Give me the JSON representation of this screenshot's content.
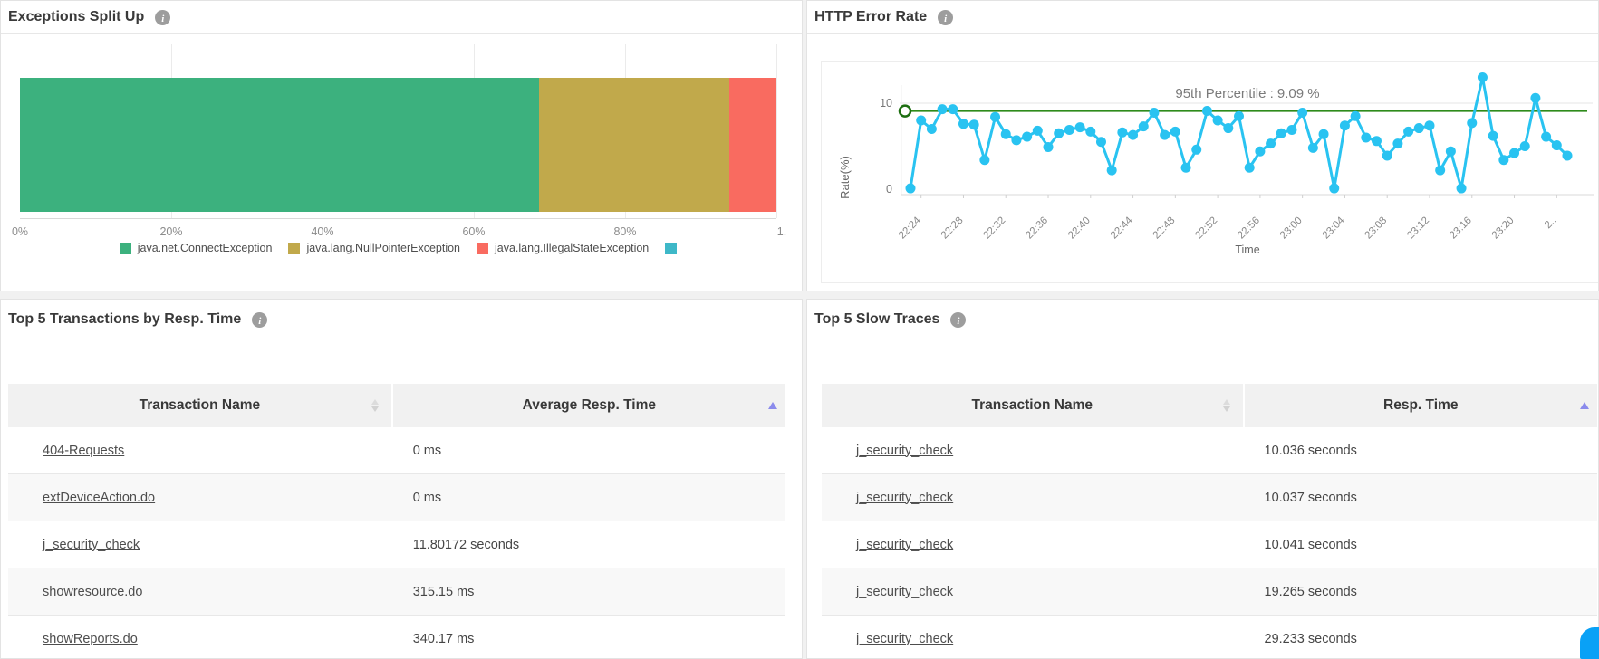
{
  "panels": {
    "exceptions_split_up": {
      "title": "Exceptions Split Up"
    },
    "http_error_rate": {
      "title": "HTTP Error Rate"
    },
    "top5_transactions": {
      "title": "Top 5 Transactions by Resp. Time"
    },
    "top5_slow_traces": {
      "title": "Top 5 Slow Traces"
    }
  },
  "chart_data": [
    {
      "id": "exceptions-split-up",
      "type": "bar",
      "subtype": "horizontal-stacked-percentage",
      "title": "Exceptions Split Up",
      "series": [
        {
          "name": "java.net.ConnectException",
          "value_pct": 68.6,
          "color": "#3cb17e"
        },
        {
          "name": "java.lang.NullPointerException",
          "value_pct": 25.2,
          "color": "#c1a94b"
        },
        {
          "name": "java.lang.IllegalStateException",
          "value_pct": 6.2,
          "color": "#f96b60"
        },
        {
          "name": "",
          "value_pct": 0,
          "color": "#3eb8c8"
        }
      ],
      "x_tick_labels": [
        "0%",
        "20%",
        "40%",
        "60%",
        "80%",
        "1."
      ],
      "xlim": [
        0,
        100
      ],
      "grid": true,
      "legend_position": "bottom"
    },
    {
      "id": "http-error-rate",
      "type": "line",
      "title": "HTTP Error Rate",
      "xlabel": "Time",
      "ylabel": "Rate(%)",
      "y_ticks": [
        0,
        10
      ],
      "ylim": [
        0,
        14.5
      ],
      "line_color": "#29c3f1",
      "threshold": {
        "label": "95th Percentile : 9.09 %",
        "value": 9.09,
        "color": "#2e8b1b"
      },
      "x_tick_labels": [
        "22:24",
        "22:28",
        "22:32",
        "22:36",
        "22:40",
        "22:44",
        "22:48",
        "22:52",
        "22:56",
        "23:00",
        "23:04",
        "23:08",
        "23:12",
        "23:16",
        "23:20",
        "2.."
      ],
      "values": [
        0.1,
        8.0,
        7.0,
        9.3,
        9.3,
        7.6,
        7.5,
        3.4,
        8.4,
        6.4,
        5.7,
        6.1,
        6.8,
        4.9,
        6.5,
        6.9,
        7.2,
        6.7,
        5.5,
        2.2,
        6.6,
        6.3,
        7.3,
        8.9,
        6.3,
        6.7,
        2.5,
        4.6,
        9.1,
        8.0,
        7.1,
        8.5,
        2.5,
        4.4,
        5.3,
        6.5,
        6.9,
        8.9,
        4.8,
        6.4,
        0.1,
        7.4,
        8.5,
        6.0,
        5.6,
        3.9,
        5.3,
        6.7,
        7.1,
        7.4,
        2.2,
        4.4,
        0.1,
        7.7,
        13.0,
        6.2,
        3.4,
        4.2,
        5.0,
        10.6,
        6.1,
        5.1,
        3.9
      ]
    }
  ],
  "tables": {
    "transactions": {
      "headers": [
        {
          "label": "Transaction Name",
          "sort": "both"
        },
        {
          "label": "Average Resp. Time",
          "sort": "asc"
        }
      ],
      "rows": [
        [
          "404-Requests",
          "0 ms"
        ],
        [
          "extDeviceAction.do",
          "0 ms"
        ],
        [
          "j_security_check",
          "11.80172 seconds"
        ],
        [
          "showresource.do",
          "315.15 ms"
        ],
        [
          "showReports.do",
          "340.17 ms"
        ]
      ]
    },
    "slow_traces": {
      "headers": [
        {
          "label": "Transaction Name",
          "sort": "both"
        },
        {
          "label": "Resp. Time",
          "sort": "asc"
        }
      ],
      "rows": [
        [
          "j_security_check",
          "10.036 seconds"
        ],
        [
          "j_security_check",
          "10.037 seconds"
        ],
        [
          "j_security_check",
          "10.041 seconds"
        ],
        [
          "j_security_check",
          "19.265 seconds"
        ],
        [
          "j_security_check",
          "29.233 seconds"
        ]
      ]
    }
  },
  "colors": {
    "accent_sort": "#8b8bec",
    "fab_blue": "#09a1f6",
    "panel_border": "#e3e3e3"
  }
}
